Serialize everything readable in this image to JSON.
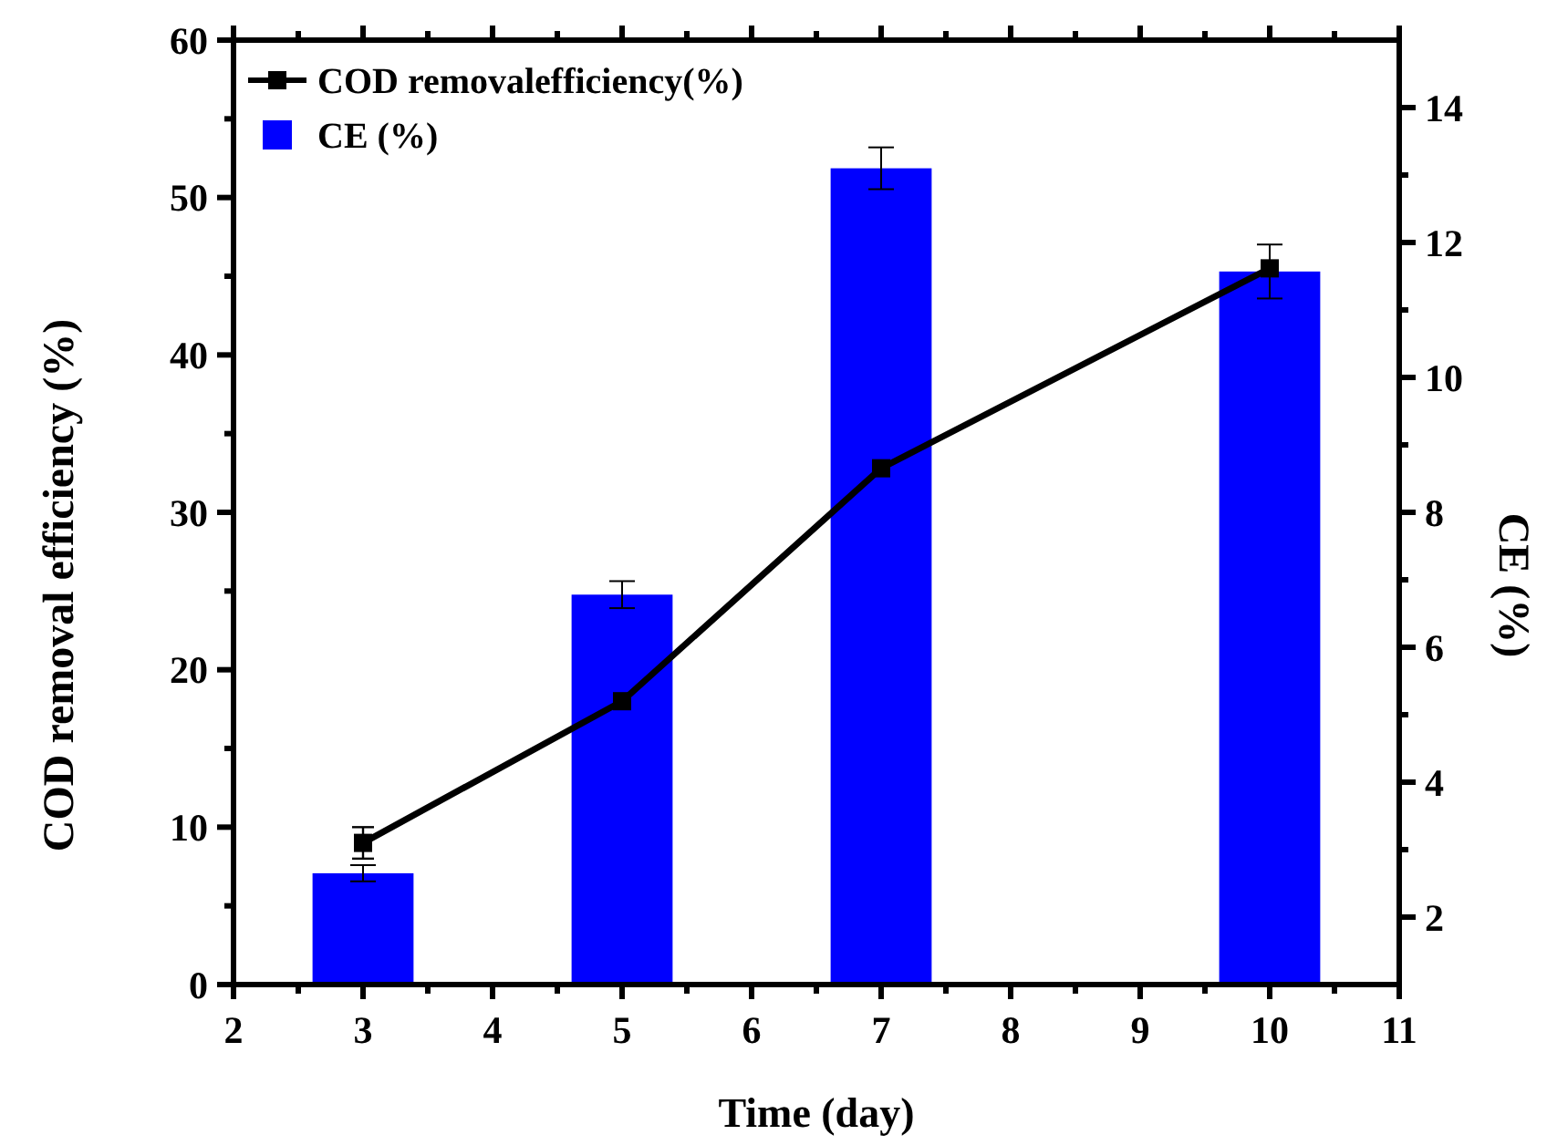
{
  "chart_data": {
    "type": "line",
    "xlabel": "Time (day)",
    "ylabel": "COD removal efficiency (%)",
    "y2label": "CE (%)",
    "x": [
      3,
      5,
      7,
      10
    ],
    "series": [
      {
        "name": "COD removalefficiency(%)",
        "color": "#000000",
        "values": [
          9.0,
          18.0,
          32.8,
          45.5
        ],
        "errors": [
          1.0,
          null,
          null,
          null
        ],
        "marker": "square",
        "line_style": "solid"
      },
      {
        "name": "CE (%)",
        "type": "bar",
        "axis": "y2",
        "color": "#0000ff",
        "values": [
          2.65,
          6.78,
          13.1,
          11.57
        ],
        "errors": [
          0.12,
          0.2,
          0.31,
          0.4
        ]
      }
    ],
    "xlim": [
      2,
      11
    ],
    "xticks": [
      2,
      {
        "value": 2.5,
        "label": null
      },
      3,
      {
        "value": 3.5,
        "label": null
      },
      4,
      {
        "value": 4.5,
        "label": null
      },
      5,
      {
        "value": 5.5,
        "label": null
      },
      6,
      {
        "value": 6.5,
        "label": null
      },
      7,
      {
        "value": 7.5,
        "label": null
      },
      8,
      {
        "value": 8.5,
        "label": null
      },
      9,
      {
        "value": 9.5,
        "label": null
      },
      10,
      {
        "value": 10.5,
        "label": null
      },
      11
    ],
    "ylim": [
      0,
      60
    ],
    "yticks": [
      0,
      {
        "value": 5,
        "label": null
      },
      10,
      {
        "value": 15,
        "label": null
      },
      20,
      {
        "value": 25,
        "label": null
      },
      30,
      {
        "value": 35,
        "label": null
      },
      40,
      {
        "value": 45,
        "label": null
      },
      50,
      {
        "value": 55,
        "label": null
      },
      60
    ],
    "y2lim": [
      1,
      15
    ],
    "y2ticks": [
      2,
      {
        "value": 3,
        "label": null
      },
      4,
      {
        "value": 5,
        "label": null
      },
      6,
      {
        "value": 7,
        "label": null
      },
      8,
      {
        "value": 9,
        "label": null
      },
      10,
      {
        "value": 11,
        "label": null
      },
      12,
      {
        "value": 13,
        "label": null
      },
      14
    ],
    "grid": false,
    "legend": "top left"
  }
}
